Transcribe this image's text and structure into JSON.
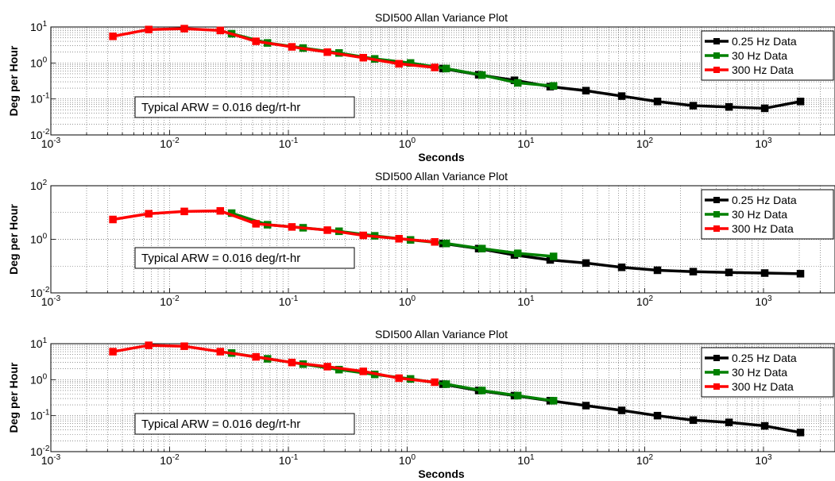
{
  "chart_data": [
    {
      "type": "line",
      "title": "SDI500 Allan Variance Plot",
      "xlabel": "Seconds",
      "ylabel": "Deg per Hour",
      "xscale": "log",
      "yscale": "log",
      "xlim": [
        0.001,
        4000
      ],
      "ylim": [
        0.01,
        10
      ],
      "xticks": [
        0.001,
        0.01,
        0.1,
        1,
        10,
        100,
        1000
      ],
      "xtick_labels": [
        {
          "b": "10",
          "e": "-3"
        },
        {
          "b": "10",
          "e": "-2"
        },
        {
          "b": "10",
          "e": "-1"
        },
        {
          "b": "10",
          "e": "0"
        },
        {
          "b": "10",
          "e": "1"
        },
        {
          "b": "10",
          "e": "2"
        },
        {
          "b": "10",
          "e": "3"
        }
      ],
      "yticks": [
        0.01,
        0.1,
        1,
        10
      ],
      "ytick_labels": [
        {
          "b": "10",
          "e": "-2"
        },
        {
          "b": "10",
          "e": "-1"
        },
        {
          "b": "10",
          "e": "0"
        },
        {
          "b": "10",
          "e": "1"
        }
      ],
      "grid": true,
      "minor_grid": true,
      "legend_position": "top-right",
      "annotation": "Typical ARW = 0.016 deg/rt-hr",
      "series": [
        {
          "name": "0.25 Hz Data",
          "color": "#000000",
          "x": [
            2,
            4,
            8,
            16,
            32,
            64,
            128,
            256,
            512,
            1024,
            2048
          ],
          "y": [
            0.7,
            0.47,
            0.33,
            0.22,
            0.17,
            0.12,
            0.085,
            0.065,
            0.06,
            0.055,
            0.085
          ]
        },
        {
          "name": "30 Hz Data",
          "color": "#008000",
          "x": [
            0.0333,
            0.0667,
            0.133,
            0.267,
            0.533,
            1.067,
            2.133,
            4.267,
            8.533,
            17.07
          ],
          "y": [
            6.5,
            3.6,
            2.6,
            1.9,
            1.3,
            1.0,
            0.7,
            0.46,
            0.28,
            0.23
          ]
        },
        {
          "name": "300 Hz Data",
          "color": "#ff0000",
          "x": [
            0.00333,
            0.00667,
            0.0133,
            0.0267,
            0.0533,
            0.107,
            0.213,
            0.427,
            0.853,
            1.707
          ],
          "y": [
            5.5,
            8.5,
            9.0,
            8.0,
            4.0,
            2.8,
            2.0,
            1.4,
            0.95,
            0.75
          ]
        }
      ]
    },
    {
      "type": "line",
      "title": "SDI500 Allan Variance Plot",
      "xlabel": "",
      "ylabel": "Deg per Hour",
      "xscale": "log",
      "yscale": "log",
      "xlim": [
        0.001,
        4000
      ],
      "ylim": [
        0.01,
        100
      ],
      "xticks": [
        0.001,
        0.01,
        0.1,
        1,
        10,
        100,
        1000
      ],
      "xtick_labels": [
        {
          "b": "10",
          "e": "-3"
        },
        {
          "b": "10",
          "e": "-2"
        },
        {
          "b": "10",
          "e": "-1"
        },
        {
          "b": "10",
          "e": "0"
        },
        {
          "b": "10",
          "e": "1"
        },
        {
          "b": "10",
          "e": "2"
        },
        {
          "b": "10",
          "e": "3"
        }
      ],
      "yticks": [
        0.01,
        1,
        100
      ],
      "ytick_labels": [
        {
          "b": "10",
          "e": "-2"
        },
        {
          "b": "10",
          "e": "0"
        },
        {
          "b": "10",
          "e": "2"
        }
      ],
      "grid": true,
      "minor_grid": false,
      "legend_position": "top-right",
      "annotation": "Typical ARW = 0.016 deg/rt-hr",
      "series": [
        {
          "name": "0.25 Hz Data",
          "color": "#000000",
          "x": [
            2,
            4,
            8,
            16,
            32,
            64,
            128,
            256,
            512,
            1024,
            2048
          ],
          "y": [
            0.7,
            0.45,
            0.26,
            0.17,
            0.13,
            0.09,
            0.07,
            0.062,
            0.058,
            0.055,
            0.052
          ]
        },
        {
          "name": "30 Hz Data",
          "color": "#008000",
          "x": [
            0.0333,
            0.0667,
            0.133,
            0.267,
            0.533,
            1.067,
            2.133,
            4.267,
            8.533,
            17.07
          ],
          "y": [
            9.5,
            3.5,
            2.7,
            2.0,
            1.35,
            0.95,
            0.7,
            0.45,
            0.3,
            0.23
          ]
        },
        {
          "name": "300 Hz Data",
          "color": "#ff0000",
          "x": [
            0.00333,
            0.00667,
            0.0133,
            0.0267,
            0.0533,
            0.107,
            0.213,
            0.427,
            0.853,
            1.707
          ],
          "y": [
            5.5,
            9.0,
            11.0,
            11.5,
            3.8,
            2.9,
            2.2,
            1.4,
            1.05,
            0.8
          ]
        }
      ]
    },
    {
      "type": "line",
      "title": "SDI500 Allan Variance Plot",
      "xlabel": "Seconds",
      "ylabel": "Deg per Hour",
      "xscale": "log",
      "yscale": "log",
      "xlim": [
        0.001,
        4000
      ],
      "ylim": [
        0.01,
        10
      ],
      "xticks": [
        0.001,
        0.01,
        0.1,
        1,
        10,
        100,
        1000
      ],
      "xtick_labels": [
        {
          "b": "10",
          "e": "-3"
        },
        {
          "b": "10",
          "e": "-2"
        },
        {
          "b": "10",
          "e": "-1"
        },
        {
          "b": "10",
          "e": "0"
        },
        {
          "b": "10",
          "e": "1"
        },
        {
          "b": "10",
          "e": "2"
        },
        {
          "b": "10",
          "e": "3"
        }
      ],
      "yticks": [
        0.01,
        0.1,
        1,
        10
      ],
      "ytick_labels": [
        {
          "b": "10",
          "e": "-2"
        },
        {
          "b": "10",
          "e": "-1"
        },
        {
          "b": "10",
          "e": "0"
        },
        {
          "b": "10",
          "e": "1"
        }
      ],
      "grid": true,
      "minor_grid": true,
      "legend_position": "top-right",
      "annotation": "Typical ARW = 0.016 deg/rt-hr",
      "series": [
        {
          "name": "0.25 Hz Data",
          "color": "#000000",
          "x": [
            2,
            4,
            8,
            16,
            32,
            64,
            128,
            256,
            512,
            1024,
            2048
          ],
          "y": [
            0.75,
            0.5,
            0.36,
            0.26,
            0.19,
            0.14,
            0.1,
            0.075,
            0.065,
            0.052,
            0.034
          ]
        },
        {
          "name": "30 Hz Data",
          "color": "#008000",
          "x": [
            0.0333,
            0.0667,
            0.133,
            0.267,
            0.533,
            1.067,
            2.133,
            4.267,
            8.533,
            17.07
          ],
          "y": [
            5.5,
            3.8,
            2.7,
            1.9,
            1.4,
            1.05,
            0.75,
            0.5,
            0.36,
            0.26
          ]
        },
        {
          "name": "300 Hz Data",
          "color": "#ff0000",
          "x": [
            0.00333,
            0.00667,
            0.0133,
            0.0267,
            0.0533,
            0.107,
            0.213,
            0.427,
            0.853,
            1.707
          ],
          "y": [
            6.0,
            9.0,
            8.5,
            6.0,
            4.3,
            3.0,
            2.3,
            1.7,
            1.1,
            0.85
          ]
        }
      ]
    }
  ]
}
